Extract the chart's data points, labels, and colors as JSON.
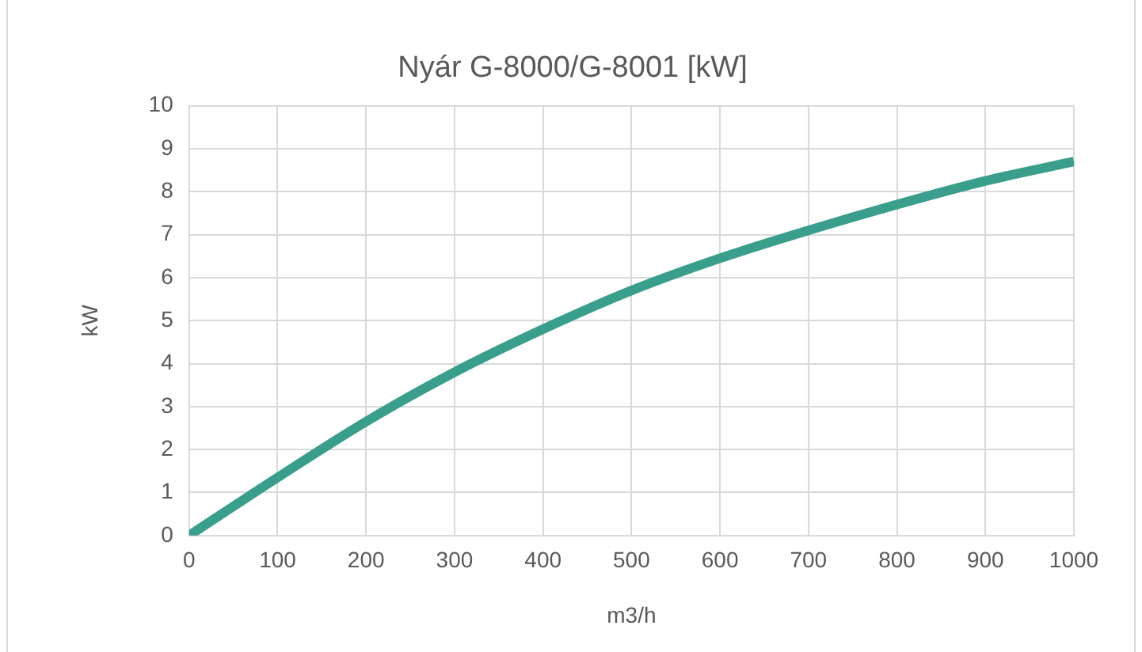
{
  "chart_data": {
    "type": "line",
    "title": "Nyár G-8000/G-8001 [kW]",
    "xlabel": "m3/h",
    "ylabel": "kW",
    "x": [
      0,
      100,
      200,
      300,
      400,
      500,
      600,
      700,
      800,
      900,
      1000
    ],
    "series": [
      {
        "color": "#3a9e8c",
        "values": [
          0,
          1.35,
          2.65,
          3.8,
          4.8,
          5.7,
          6.45,
          7.1,
          7.7,
          8.25,
          8.7
        ]
      }
    ],
    "xlim": [
      0,
      1000
    ],
    "xticks": [
      0,
      100,
      200,
      300,
      400,
      500,
      600,
      700,
      800,
      900,
      1000
    ],
    "ylim": [
      0,
      10
    ],
    "yticks": [
      0,
      1,
      2,
      3,
      4,
      5,
      6,
      7,
      8,
      9,
      10
    ],
    "grid": true,
    "legend": false,
    "marker": "none",
    "line_style": "solid"
  }
}
